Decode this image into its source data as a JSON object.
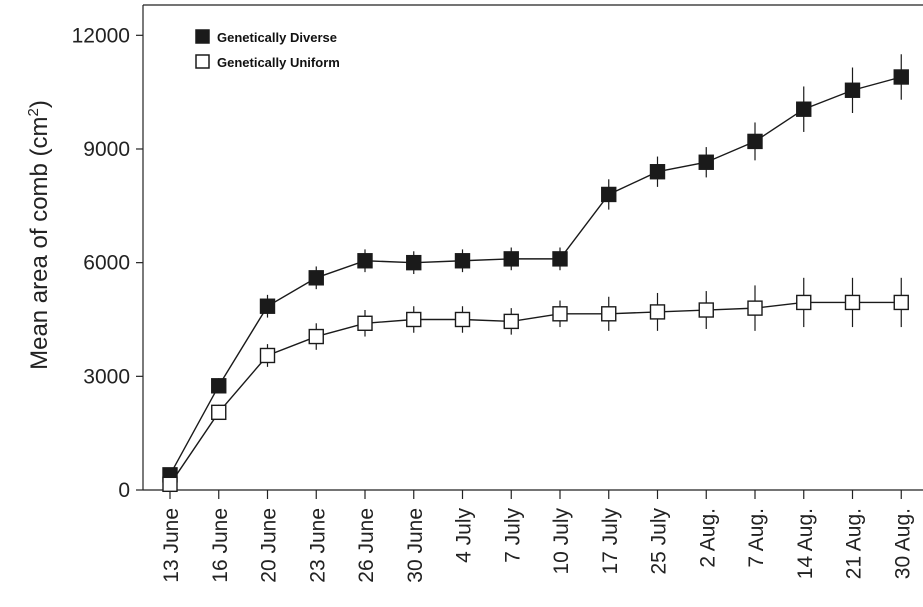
{
  "chart_data": {
    "type": "line",
    "ylabel": "Mean area of comb (cm",
    "ylabel_sup": "2",
    "ylabel_close": ")",
    "ylim": [
      0,
      12800
    ],
    "yticks": [
      0,
      3000,
      6000,
      9000,
      12000
    ],
    "ytick_labels": [
      "0",
      "3000",
      "6000",
      "9000",
      "12000"
    ],
    "categories": [
      "13 June",
      "16 June",
      "20 June",
      "23 June",
      "26 June",
      "30 June",
      "4 July",
      "7 July",
      "10 July",
      "17 July",
      "25 July",
      "2 Aug.",
      "7 Aug.",
      "14 Aug.",
      "21 Aug.",
      "30 Aug."
    ],
    "legend_position": "top-left",
    "series": [
      {
        "name": "Genetically Diverse",
        "marker": "filled-square",
        "color": "#1a1a1a",
        "values": [
          400,
          2750,
          4850,
          5600,
          6050,
          6000,
          6050,
          6100,
          6100,
          7800,
          8400,
          8650,
          9200,
          10050,
          10550,
          10900
        ],
        "error": [
          0,
          200,
          300,
          300,
          300,
          300,
          300,
          300,
          300,
          400,
          400,
          400,
          500,
          600,
          600,
          600
        ]
      },
      {
        "name": "Genetically Uniform",
        "marker": "open-square",
        "color": "#1a1a1a",
        "values": [
          150,
          2050,
          3550,
          4050,
          4400,
          4500,
          4500,
          4450,
          4650,
          4650,
          4700,
          4750,
          4800,
          4950,
          4950,
          4950
        ],
        "error": [
          0,
          200,
          300,
          350,
          350,
          350,
          350,
          350,
          350,
          450,
          500,
          500,
          600,
          650,
          650,
          650
        ]
      }
    ]
  }
}
